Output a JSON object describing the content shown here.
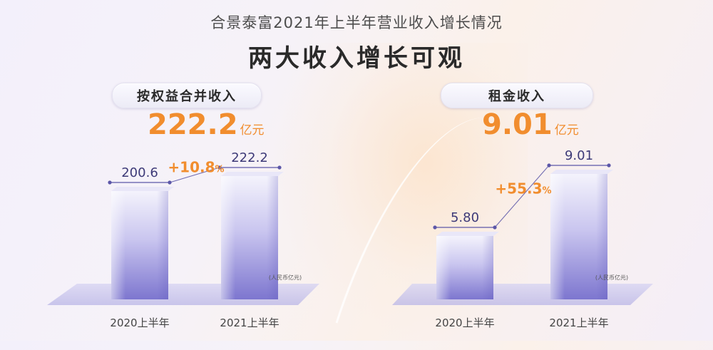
{
  "header": {
    "title": "合景泰富2021年上半年营业收入增长情况",
    "headline": "两大收入增长可观"
  },
  "chart_data": [
    {
      "type": "bar",
      "title": "按权益合并收入",
      "total_value": "222.2",
      "total_unit": "亿元",
      "categories": [
        "2020上半年",
        "2021上半年"
      ],
      "values": [
        200.6,
        222.2
      ],
      "value_labels": [
        "200.6",
        "222.2"
      ],
      "growth_label": "+10.8",
      "growth_percent": "%",
      "unit_note": "(人民币亿元)",
      "colors": {
        "bar": "#8f88d6",
        "line": "#5c57a8",
        "growth": "#f18d2e"
      }
    },
    {
      "type": "bar",
      "title": "租金收入",
      "total_value": "9.01",
      "total_unit": "亿元",
      "categories": [
        "2020上半年",
        "2021上半年"
      ],
      "values": [
        5.8,
        9.01
      ],
      "value_labels": [
        "5.80",
        "9.01"
      ],
      "growth_label": "+55.3",
      "growth_percent": "%",
      "unit_note": "(人民币亿元)",
      "colors": {
        "bar": "#8f88d6",
        "line": "#5c57a8",
        "growth": "#f18d2e"
      }
    }
  ]
}
